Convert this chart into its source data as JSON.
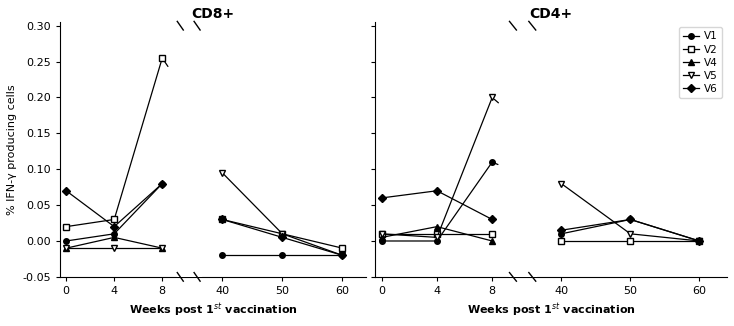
{
  "cd8": {
    "title": "CD8+",
    "V1": {
      "x": [
        0,
        4,
        8,
        40,
        50,
        60
      ],
      "y": [
        0.0,
        0.01,
        0.08,
        -0.02,
        -0.02,
        -0.02
      ]
    },
    "V2": {
      "x": [
        0,
        4,
        8,
        40,
        50,
        60
      ],
      "y": [
        0.02,
        0.03,
        0.255,
        0.03,
        0.01,
        -0.01
      ]
    },
    "V4": {
      "x": [
        0,
        4,
        8
      ],
      "y": [
        -0.01,
        0.005,
        -0.01
      ]
    },
    "V5": {
      "x": [
        0,
        4,
        8,
        40,
        50,
        60
      ],
      "y": [
        -0.01,
        -0.01,
        -0.01,
        0.095,
        0.01,
        -0.02
      ]
    },
    "V6": {
      "x": [
        0,
        4,
        8,
        40,
        50,
        60
      ],
      "y": [
        0.07,
        0.02,
        0.08,
        0.03,
        0.005,
        -0.02
      ]
    }
  },
  "cd4": {
    "title": "CD4+",
    "V1": {
      "x": [
        0,
        4,
        8,
        40,
        50,
        60
      ],
      "y": [
        0.0,
        0.0,
        0.11,
        0.01,
        0.03,
        0.0
      ]
    },
    "V2": {
      "x": [
        0,
        4,
        8,
        40,
        50,
        60
      ],
      "y": [
        0.01,
        0.01,
        0.01,
        0.0,
        0.0,
        0.0
      ]
    },
    "V4": {
      "x": [
        0,
        4,
        8
      ],
      "y": [
        0.005,
        0.02,
        0.0
      ]
    },
    "V5": {
      "x": [
        0,
        4,
        8,
        40,
        50,
        60
      ],
      "y": [
        0.01,
        0.005,
        0.2,
        0.08,
        0.01,
        0.0
      ]
    },
    "V6": {
      "x": [
        0,
        4,
        8,
        40,
        50,
        60
      ],
      "y": [
        0.06,
        0.07,
        0.03,
        0.015,
        0.03,
        0.0
      ]
    }
  },
  "ylabel": "% IFN-γ producing cells",
  "xlabel": "Weeks post 1$^{st}$ vaccination",
  "yticks": [
    -0.05,
    0.0,
    0.05,
    0.1,
    0.15,
    0.2,
    0.25,
    0.3
  ],
  "ytick_labels": [
    "-0.05",
    "0.00",
    "0.05",
    "0.10",
    "0.15",
    "0.20",
    "0.25",
    "0.30"
  ],
  "xtick_left_pos": [
    0,
    4,
    8
  ],
  "xtick_left_labels": [
    "0",
    "4",
    "8"
  ],
  "xtick_right_real": [
    40,
    50,
    60
  ],
  "xtick_right_labels": [
    "40",
    "50",
    "60"
  ],
  "legend_entries": [
    "V1",
    "V2",
    "V4",
    "V5",
    "V6"
  ]
}
